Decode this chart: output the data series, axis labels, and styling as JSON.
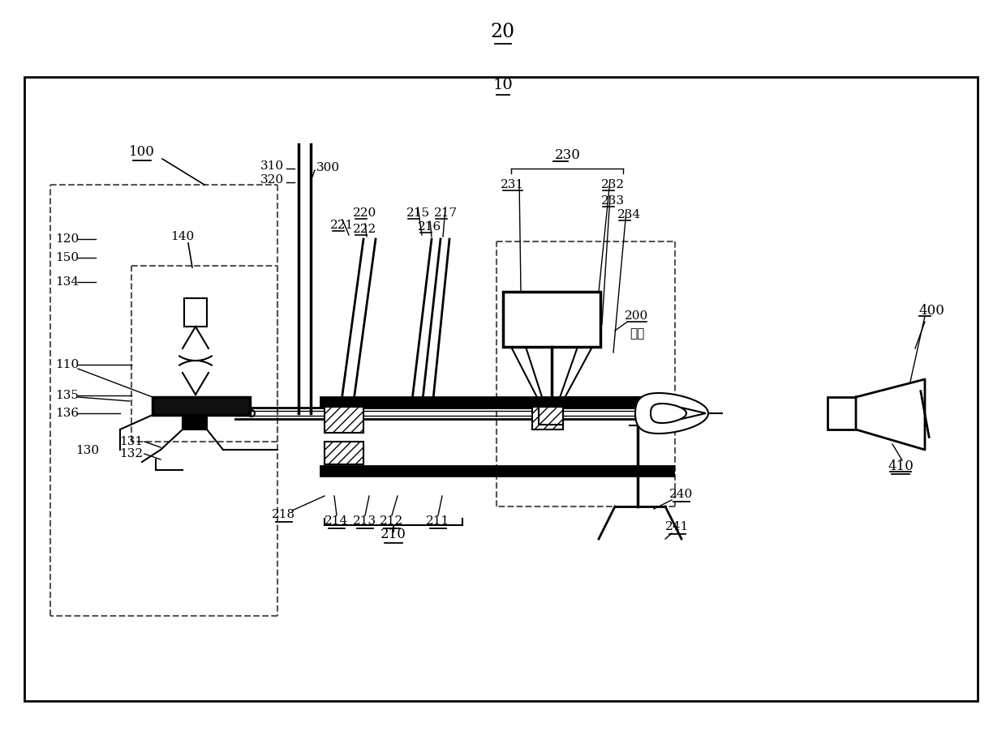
{
  "bg": "#ffffff",
  "lc": "#000000",
  "dc": "#555555"
}
